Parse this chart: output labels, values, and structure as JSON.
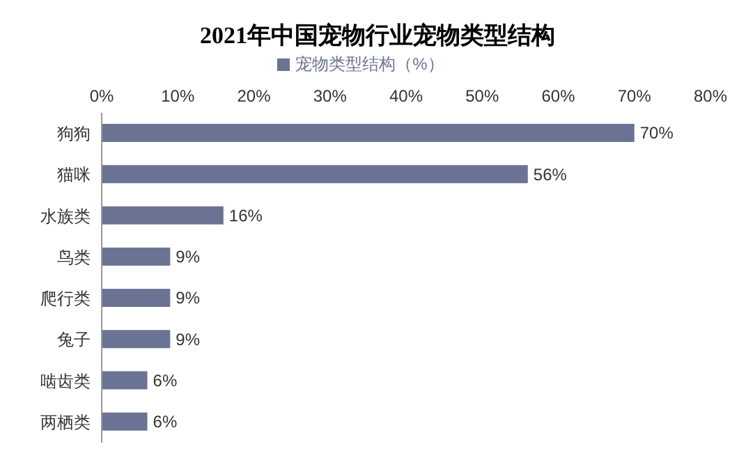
{
  "chart_data": {
    "type": "bar",
    "orientation": "horizontal",
    "title": "2021年中国宠物行业宠物类型结构",
    "categories": [
      "狗狗",
      "猫咪",
      "水族类",
      "鸟类",
      "爬行类",
      "兔子",
      "啮齿类",
      "两栖类"
    ],
    "series": [
      {
        "name": "宠物类型结构（%）",
        "color": "#6b7394",
        "values": [
          70,
          56,
          16,
          9,
          9,
          9,
          6,
          6
        ],
        "value_labels": [
          "70%",
          "56%",
          "16%",
          "9%",
          "9%",
          "9%",
          "6%",
          "6%"
        ]
      }
    ],
    "xlim": [
      0,
      80
    ],
    "xticks": [
      {
        "value": 0,
        "label": "0%"
      },
      {
        "value": 10,
        "label": "10%"
      },
      {
        "value": 20,
        "label": "20%"
      },
      {
        "value": 30,
        "label": "30%"
      },
      {
        "value": 40,
        "label": "40%"
      },
      {
        "value": 50,
        "label": "50%"
      },
      {
        "value": 60,
        "label": "60%"
      },
      {
        "value": 70,
        "label": "70%"
      },
      {
        "value": 80,
        "label": "80%"
      }
    ],
    "legend": "top",
    "grid": false
  }
}
